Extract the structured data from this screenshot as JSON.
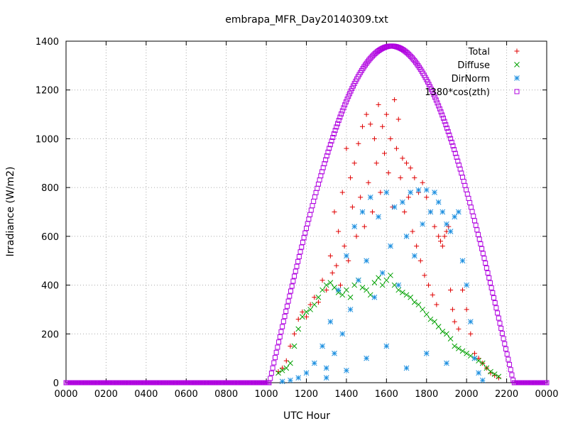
{
  "chart_data": {
    "type": "scatter",
    "title": "embrapa_MFR_Day20140309.txt",
    "xlabel": "UTC Hour",
    "ylabel": "Irradiance (W/m2)",
    "xlim": [
      0,
      24
    ],
    "ylim": [
      0,
      1400
    ],
    "x_ticks": [
      {
        "value": 0,
        "label": "0000"
      },
      {
        "value": 2,
        "label": "0200"
      },
      {
        "value": 4,
        "label": "0400"
      },
      {
        "value": 6,
        "label": "0600"
      },
      {
        "value": 8,
        "label": "0800"
      },
      {
        "value": 10,
        "label": "1000"
      },
      {
        "value": 12,
        "label": "1200"
      },
      {
        "value": 14,
        "label": "1400"
      },
      {
        "value": 16,
        "label": "1600"
      },
      {
        "value": 18,
        "label": "1800"
      },
      {
        "value": 20,
        "label": "2000"
      },
      {
        "value": 22,
        "label": "2200"
      },
      {
        "value": 24,
        "label": "0000"
      }
    ],
    "y_ticks": [
      0,
      200,
      400,
      600,
      800,
      1000,
      1200,
      1400
    ],
    "grid": true,
    "legend_position": "top-right",
    "series": [
      {
        "name": "Total",
        "color": "#e00000",
        "marker": "plus",
        "points": [
          [
            10.6,
            45
          ],
          [
            10.8,
            60
          ],
          [
            11.0,
            90
          ],
          [
            11.2,
            150
          ],
          [
            11.4,
            200
          ],
          [
            11.6,
            260
          ],
          [
            11.8,
            290
          ],
          [
            12.0,
            270
          ],
          [
            12.2,
            320
          ],
          [
            12.4,
            350
          ],
          [
            12.6,
            330
          ],
          [
            12.8,
            420
          ],
          [
            13.0,
            380
          ],
          [
            13.2,
            520
          ],
          [
            13.3,
            450
          ],
          [
            13.4,
            700
          ],
          [
            13.5,
            480
          ],
          [
            13.6,
            620
          ],
          [
            13.7,
            400
          ],
          [
            13.8,
            780
          ],
          [
            13.9,
            560
          ],
          [
            14.0,
            960
          ],
          [
            14.1,
            500
          ],
          [
            14.2,
            840
          ],
          [
            14.3,
            720
          ],
          [
            14.4,
            900
          ],
          [
            14.5,
            600
          ],
          [
            14.6,
            980
          ],
          [
            14.7,
            760
          ],
          [
            14.8,
            1050
          ],
          [
            14.9,
            640
          ],
          [
            15.0,
            1100
          ],
          [
            15.1,
            820
          ],
          [
            15.2,
            1060
          ],
          [
            15.3,
            700
          ],
          [
            15.4,
            1000
          ],
          [
            15.5,
            900
          ],
          [
            15.6,
            1140
          ],
          [
            15.7,
            780
          ],
          [
            15.8,
            1050
          ],
          [
            15.9,
            940
          ],
          [
            16.0,
            1100
          ],
          [
            16.1,
            860
          ],
          [
            16.2,
            1000
          ],
          [
            16.3,
            720
          ],
          [
            16.4,
            1160
          ],
          [
            16.5,
            960
          ],
          [
            16.6,
            1080
          ],
          [
            16.7,
            840
          ],
          [
            16.8,
            920
          ],
          [
            16.9,
            700
          ],
          [
            17.0,
            900
          ],
          [
            17.1,
            760
          ],
          [
            17.2,
            880
          ],
          [
            17.3,
            620
          ],
          [
            17.4,
            840
          ],
          [
            17.5,
            560
          ],
          [
            17.6,
            780
          ],
          [
            17.7,
            500
          ],
          [
            17.8,
            820
          ],
          [
            17.9,
            440
          ],
          [
            18.0,
            760
          ],
          [
            18.1,
            400
          ],
          [
            18.2,
            700
          ],
          [
            18.3,
            360
          ],
          [
            18.4,
            640
          ],
          [
            18.5,
            320
          ],
          [
            18.6,
            600
          ],
          [
            18.7,
            580
          ],
          [
            18.8,
            560
          ],
          [
            18.9,
            600
          ],
          [
            19.0,
            620
          ],
          [
            19.1,
            640
          ],
          [
            19.2,
            380
          ],
          [
            19.3,
            300
          ],
          [
            19.4,
            250
          ],
          [
            19.6,
            220
          ],
          [
            19.8,
            380
          ],
          [
            20.0,
            300
          ],
          [
            20.2,
            200
          ],
          [
            20.4,
            120
          ],
          [
            20.6,
            100
          ],
          [
            20.8,
            80
          ],
          [
            21.0,
            60
          ],
          [
            21.2,
            40
          ],
          [
            21.4,
            30
          ],
          [
            21.6,
            20
          ]
        ]
      },
      {
        "name": "Diffuse",
        "color": "#00a000",
        "marker": "cross",
        "points": [
          [
            10.6,
            40
          ],
          [
            10.8,
            50
          ],
          [
            11.0,
            60
          ],
          [
            11.2,
            80
          ],
          [
            11.4,
            150
          ],
          [
            11.6,
            220
          ],
          [
            11.8,
            270
          ],
          [
            12.0,
            290
          ],
          [
            12.2,
            300
          ],
          [
            12.4,
            320
          ],
          [
            12.6,
            350
          ],
          [
            12.8,
            380
          ],
          [
            13.0,
            400
          ],
          [
            13.2,
            410
          ],
          [
            13.4,
            390
          ],
          [
            13.6,
            370
          ],
          [
            13.8,
            360
          ],
          [
            14.0,
            380
          ],
          [
            14.2,
            350
          ],
          [
            14.4,
            400
          ],
          [
            14.6,
            420
          ],
          [
            14.8,
            390
          ],
          [
            15.0,
            380
          ],
          [
            15.2,
            360
          ],
          [
            15.4,
            410
          ],
          [
            15.6,
            430
          ],
          [
            15.8,
            400
          ],
          [
            16.0,
            420
          ],
          [
            16.2,
            440
          ],
          [
            16.4,
            400
          ],
          [
            16.6,
            380
          ],
          [
            16.8,
            370
          ],
          [
            17.0,
            360
          ],
          [
            17.2,
            350
          ],
          [
            17.4,
            330
          ],
          [
            17.6,
            320
          ],
          [
            17.8,
            300
          ],
          [
            18.0,
            280
          ],
          [
            18.2,
            260
          ],
          [
            18.4,
            250
          ],
          [
            18.6,
            230
          ],
          [
            18.8,
            210
          ],
          [
            19.0,
            200
          ],
          [
            19.2,
            180
          ],
          [
            19.4,
            150
          ],
          [
            19.6,
            140
          ],
          [
            19.8,
            130
          ],
          [
            20.0,
            120
          ],
          [
            20.2,
            110
          ],
          [
            20.4,
            100
          ],
          [
            20.6,
            90
          ],
          [
            20.8,
            80
          ],
          [
            21.0,
            60
          ],
          [
            21.2,
            45
          ],
          [
            21.4,
            35
          ],
          [
            21.6,
            25
          ]
        ]
      },
      {
        "name": "DirNorm",
        "color": "#1e90e0",
        "marker": "star",
        "points": [
          [
            10.8,
            5
          ],
          [
            11.2,
            10
          ],
          [
            11.6,
            20
          ],
          [
            12.0,
            40
          ],
          [
            12.4,
            80
          ],
          [
            12.8,
            150
          ],
          [
            13.0,
            60
          ],
          [
            13.2,
            250
          ],
          [
            13.4,
            120
          ],
          [
            13.6,
            380
          ],
          [
            13.8,
            200
          ],
          [
            14.0,
            520
          ],
          [
            14.2,
            300
          ],
          [
            14.4,
            640
          ],
          [
            14.6,
            420
          ],
          [
            14.8,
            700
          ],
          [
            15.0,
            500
          ],
          [
            15.2,
            760
          ],
          [
            15.4,
            350
          ],
          [
            15.6,
            680
          ],
          [
            15.8,
            450
          ],
          [
            16.0,
            780
          ],
          [
            16.2,
            560
          ],
          [
            16.4,
            720
          ],
          [
            16.6,
            400
          ],
          [
            16.8,
            740
          ],
          [
            17.0,
            600
          ],
          [
            17.2,
            780
          ],
          [
            17.4,
            520
          ],
          [
            17.6,
            790
          ],
          [
            17.8,
            650
          ],
          [
            18.0,
            790
          ],
          [
            18.2,
            700
          ],
          [
            18.4,
            780
          ],
          [
            18.6,
            740
          ],
          [
            18.8,
            700
          ],
          [
            19.0,
            650
          ],
          [
            19.2,
            620
          ],
          [
            19.4,
            680
          ],
          [
            19.6,
            700
          ],
          [
            19.8,
            500
          ],
          [
            20.0,
            400
          ],
          [
            20.2,
            250
          ],
          [
            20.4,
            100
          ],
          [
            20.6,
            40
          ],
          [
            20.8,
            10
          ],
          [
            13.0,
            20
          ],
          [
            14.0,
            50
          ],
          [
            15.0,
            100
          ],
          [
            16.0,
            150
          ],
          [
            17.0,
            60
          ],
          [
            18.0,
            120
          ],
          [
            19.0,
            80
          ]
        ]
      },
      {
        "name": "1380*cos(zth)",
        "color": "#b000e0",
        "marker": "square",
        "curve": {
          "peak_value": 1380,
          "peak_hour": 16.25,
          "sunrise_hour": 10.15,
          "sunset_hour": 22.35
        }
      }
    ]
  }
}
